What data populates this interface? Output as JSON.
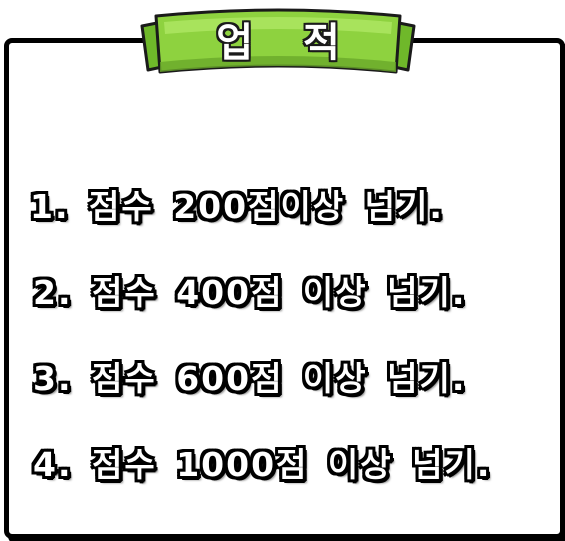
{
  "title": "업 적",
  "banner_color": "#8ed23f",
  "achievements": [
    "1. 점수 200점이상 넘기.",
    "2. 점수 400점 이상 넘기.",
    "3. 점수 600점 이상 넘기.",
    "4. 점수 1000점 이상 넘기."
  ]
}
